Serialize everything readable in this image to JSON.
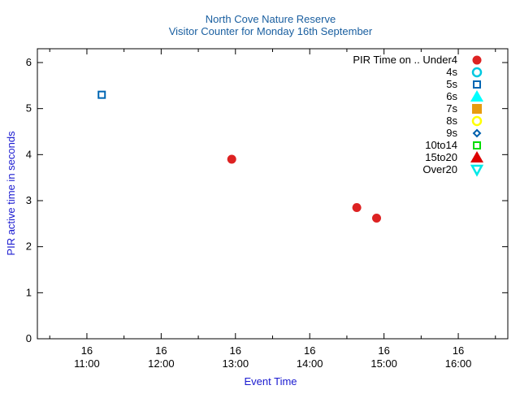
{
  "chart_data": {
    "type": "scatter",
    "title": "North Cove Nature Reserve",
    "subtitle": "Visitor Counter for Monday 16th September",
    "xlabel": "Event Time",
    "ylabel": "PIR active time in seconds",
    "xlim": [
      "10:20",
      "16:40"
    ],
    "ylim": [
      0,
      6.3
    ],
    "y_ticks": [
      "0",
      "1",
      "2",
      "3",
      "4",
      "5",
      "6"
    ],
    "x_ticks": [
      {
        "x": "11:00",
        "day": "16",
        "time": "11:00"
      },
      {
        "x": "12:00",
        "day": "16",
        "time": "12:00"
      },
      {
        "x": "13:00",
        "day": "16",
        "time": "13:00"
      },
      {
        "x": "14:00",
        "day": "16",
        "time": "14:00"
      },
      {
        "x": "15:00",
        "day": "16",
        "time": "15:00"
      },
      {
        "x": "16:00",
        "day": "16",
        "time": "16:00"
      }
    ],
    "grid": false,
    "legend_position": "top-right",
    "legend_title": "PIR Time on ..",
    "series": [
      {
        "name": "Under4",
        "marker": "filled-circle",
        "color": "#dd2222",
        "points": [
          {
            "x": "12:57",
            "y": 3.9
          },
          {
            "x": "14:38",
            "y": 2.85
          },
          {
            "x": "14:54",
            "y": 2.62
          }
        ]
      },
      {
        "name": "4s",
        "marker": "open-circle",
        "color": "#00c8e0",
        "points": []
      },
      {
        "name": "5s",
        "marker": "open-square",
        "color": "#0066b3",
        "points": [
          {
            "x": "11:12",
            "y": 5.3
          }
        ]
      },
      {
        "name": "6s",
        "marker": "filled-triangle-up",
        "color": "#00ffff",
        "points": []
      },
      {
        "name": "7s",
        "marker": "filled-square",
        "color": "#e89c10",
        "points": []
      },
      {
        "name": "8s",
        "marker": "open-circle",
        "color": "#ffff00",
        "points": []
      },
      {
        "name": "9s",
        "marker": "open-diamond",
        "color": "#0060ad",
        "points": []
      },
      {
        "name": "10to14",
        "marker": "open-square",
        "color": "#00dd00",
        "points": []
      },
      {
        "name": "15to20",
        "marker": "filled-triangle-up",
        "color": "#dd0000",
        "points": []
      },
      {
        "name": "Over20",
        "marker": "open-triangle-down",
        "color": "#00e8e8",
        "points": []
      }
    ]
  }
}
